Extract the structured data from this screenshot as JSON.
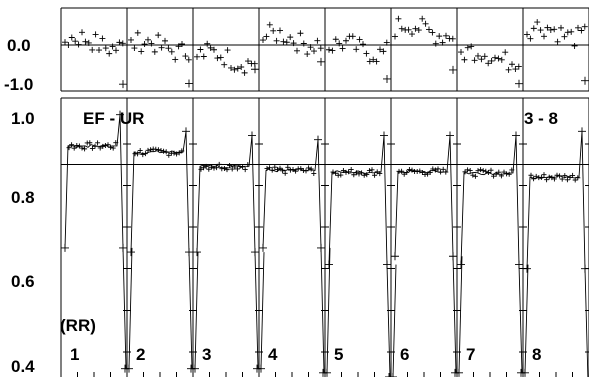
{
  "chart_data": {
    "type": "scatter",
    "title": "EF - UR",
    "subtitle": "3 - 8",
    "ylabel_note": "(RR)",
    "cycles": [
      "1",
      "2",
      "3",
      "4",
      "5",
      "6",
      "7",
      "8"
    ],
    "main_panel": {
      "yticks": [
        "1.0",
        "0.8",
        "0.6",
        "0.4"
      ],
      "ylim": [
        0.39,
        1.06
      ],
      "baseline": 0.9,
      "plateau_means": [
        0.945,
        0.93,
        0.896,
        0.886,
        0.882,
        0.883,
        0.88,
        0.87
      ],
      "end_values": [
        0.7,
        0.69,
        0.69,
        0.7,
        0.66,
        0.68,
        0.66,
        0.65
      ],
      "trough_values": [
        0.41,
        0.41,
        0.41,
        0.4,
        0.39,
        0.4,
        0.4,
        0.38
      ],
      "spike_values": [
        1.02,
        0.98,
        0.97,
        0.96,
        0.97,
        0.97,
        0.97,
        0.98
      ]
    },
    "residual_panel": {
      "yticks": [
        "0.0",
        "-1.0"
      ],
      "ylim": [
        -1.25,
        1.0
      ],
      "offsets": [
        0.05,
        -0.05,
        -0.35,
        0.15,
        -0.1,
        0.4,
        -0.3,
        0.35
      ]
    }
  },
  "colors": {
    "line": "#000000",
    "background": "#ffffff"
  }
}
